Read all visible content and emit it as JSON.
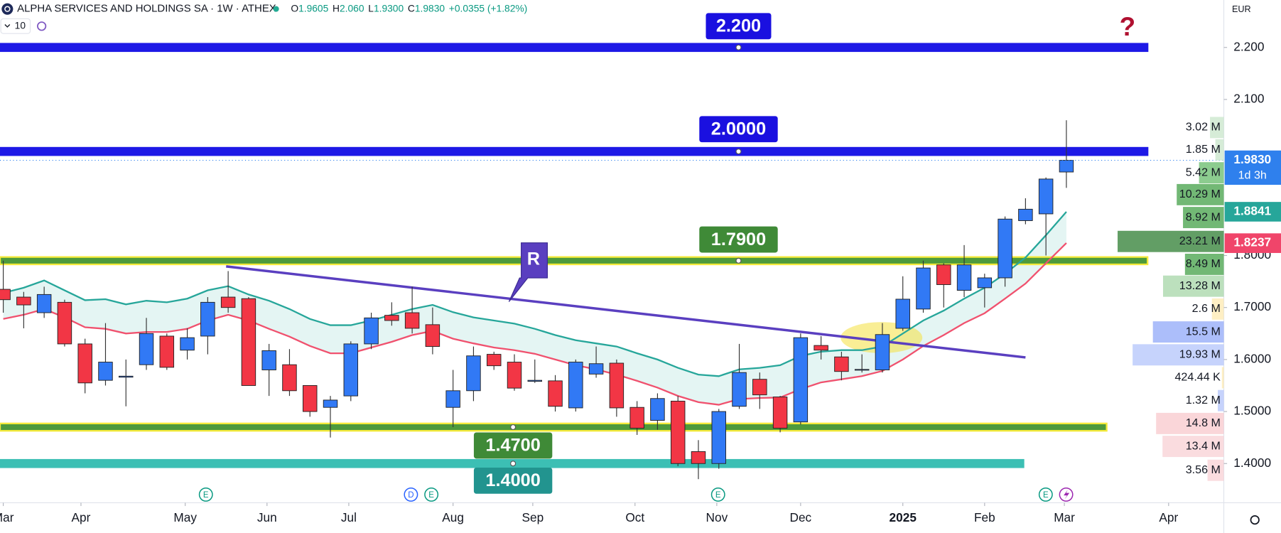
{
  "chart_data": {
    "type": "candlestick",
    "title": "ALPHA SERVICES AND HOLDINGS SA · 1W · ATHEX",
    "ohlc": [
      {
        "key": "O",
        "text": "1.9605"
      },
      {
        "key": "H",
        "text": "2.060"
      },
      {
        "key": "L",
        "text": "1.9300"
      },
      {
        "key": "C",
        "text": "1.9830"
      }
    ],
    "change": "+0.0355 (+1.82%)",
    "indicators": "10",
    "currency": "EUR",
    "up_color": "#3179f5",
    "down_color": "#f23645",
    "open": [
      1.735,
      1.72,
      1.69,
      1.71,
      1.63,
      1.56,
      1.566,
      1.59,
      1.645,
      1.618,
      1.645,
      1.72,
      1.717,
      1.58,
      1.59,
      1.55,
      1.508,
      1.53,
      1.63,
      1.685,
      1.69,
      1.667,
      1.508,
      1.54,
      1.61,
      1.595,
      1.558,
      1.559,
      1.507,
      1.572,
      1.593,
      1.508,
      1.483,
      1.52,
      1.423,
      1.4,
      1.51,
      1.562,
      1.528,
      1.48,
      1.627,
      1.605,
      1.58,
      1.58,
      1.66,
      1.697,
      1.782,
      1.733,
      1.738,
      1.757,
      1.867,
      1.88,
      1.9605
    ],
    "high": [
      1.79,
      1.73,
      1.74,
      1.715,
      1.64,
      1.67,
      1.6,
      1.68,
      1.65,
      1.66,
      1.72,
      1.77,
      1.72,
      1.63,
      1.62,
      1.55,
      1.53,
      1.635,
      1.69,
      1.71,
      1.74,
      1.7,
      1.58,
      1.625,
      1.615,
      1.61,
      1.6,
      1.57,
      1.6,
      1.625,
      1.6,
      1.52,
      1.535,
      1.53,
      1.445,
      1.505,
      1.63,
      1.575,
      1.53,
      1.65,
      1.645,
      1.615,
      1.61,
      1.67,
      1.76,
      1.79,
      1.785,
      1.82,
      1.765,
      1.875,
      1.91,
      1.95,
      2.06
    ],
    "low": [
      1.69,
      1.66,
      1.68,
      1.625,
      1.535,
      1.55,
      1.51,
      1.58,
      1.58,
      1.6,
      1.61,
      1.69,
      1.55,
      1.53,
      1.53,
      1.49,
      1.45,
      1.52,
      1.62,
      1.665,
      1.65,
      1.61,
      1.47,
      1.52,
      1.58,
      1.54,
      1.555,
      1.5,
      1.5,
      1.565,
      1.49,
      1.455,
      1.465,
      1.395,
      1.37,
      1.39,
      1.505,
      1.505,
      1.46,
      1.475,
      1.6,
      1.56,
      1.575,
      1.575,
      1.655,
      1.69,
      1.7,
      1.72,
      1.7,
      1.74,
      1.86,
      1.8,
      1.93
    ],
    "close": [
      1.715,
      1.705,
      1.725,
      1.63,
      1.555,
      1.595,
      1.568,
      1.65,
      1.585,
      1.642,
      1.71,
      1.7,
      1.55,
      1.617,
      1.54,
      1.5,
      1.522,
      1.63,
      1.68,
      1.675,
      1.66,
      1.625,
      1.54,
      1.607,
      1.588,
      1.545,
      1.56,
      1.51,
      1.595,
      1.592,
      1.507,
      1.468,
      1.525,
      1.4,
      1.4,
      1.5,
      1.575,
      1.532,
      1.468,
      1.642,
      1.618,
      1.577,
      1.581,
      1.648,
      1.716,
      1.776,
      1.744,
      1.782,
      1.757,
      1.87,
      1.889,
      1.947,
      1.983
    ],
    "series": [
      {
        "color": "#26a69a",
        "values": [
          1.728,
          1.738,
          1.752,
          1.733,
          1.714,
          1.716,
          1.706,
          1.713,
          1.71,
          1.717,
          1.733,
          1.741,
          1.725,
          1.713,
          1.697,
          1.678,
          1.666,
          1.666,
          1.675,
          1.686,
          1.697,
          1.705,
          1.691,
          1.681,
          1.675,
          1.669,
          1.659,
          1.647,
          1.637,
          1.631,
          1.625,
          1.612,
          1.6,
          1.584,
          1.571,
          1.568,
          1.581,
          1.584,
          1.589,
          1.607,
          1.615,
          1.618,
          1.618,
          1.625,
          1.65,
          1.675,
          1.694,
          1.717,
          1.738,
          1.765,
          1.796,
          1.839,
          1.884
        ]
      },
      {
        "color": "#f0516e",
        "values": [
          1.678,
          1.686,
          1.697,
          1.681,
          1.662,
          1.659,
          1.65,
          1.653,
          1.653,
          1.659,
          1.675,
          1.686,
          1.675,
          1.659,
          1.644,
          1.626,
          1.612,
          1.612,
          1.623,
          1.634,
          1.647,
          1.655,
          1.64,
          1.631,
          1.623,
          1.618,
          1.611,
          1.6,
          1.589,
          1.581,
          1.571,
          1.559,
          1.546,
          1.53,
          1.518,
          1.513,
          1.524,
          1.526,
          1.527,
          1.543,
          1.556,
          1.562,
          1.568,
          1.578,
          1.6,
          1.626,
          1.647,
          1.67,
          1.689,
          1.717,
          1.746,
          1.785,
          1.824
        ]
      }
    ],
    "channel_color": "#d9f1ee",
    "xlim": [
      -0.16,
      59.7
    ],
    "xticks": [
      {
        "value": 0,
        "label": "Mar"
      },
      {
        "value": 3.8,
        "label": "Apr"
      },
      {
        "value": 8.9,
        "label": "May"
      },
      {
        "value": 12.9,
        "label": "Jun"
      },
      {
        "value": 16.9,
        "label": "Jul"
      },
      {
        "value": 22,
        "label": "Aug"
      },
      {
        "value": 25.9,
        "label": "Sep"
      },
      {
        "value": 30.9,
        "label": "Oct"
      },
      {
        "value": 34.9,
        "label": "Nov"
      },
      {
        "value": 39,
        "label": "Dec"
      },
      {
        "value": 44,
        "label": "2025",
        "bold": true
      },
      {
        "value": 48,
        "label": "Feb"
      },
      {
        "value": 51.9,
        "label": "Mar"
      },
      {
        "value": 57,
        "label": "Apr"
      }
    ],
    "ylim": [
      1.3246,
      2.2912
    ],
    "yticks": [
      {
        "value": 2.2,
        "label": "2.200"
      },
      {
        "value": 2.1,
        "label": "2.100"
      },
      {
        "value": 1.8,
        "label": "1.8000"
      },
      {
        "value": 1.7,
        "label": "1.7000"
      },
      {
        "value": 1.6,
        "label": "1.6000"
      },
      {
        "value": 1.5,
        "label": "1.5000"
      },
      {
        "value": 1.4,
        "label": "1.4000"
      }
    ],
    "grid": false,
    "levels": [
      {
        "value": 2.2,
        "label": "2.200",
        "color": "#1e19e6",
        "end": 55.97
      },
      {
        "value": 2.0,
        "label": "2.0000",
        "color": "#1e19e6",
        "end": 55.97
      },
      {
        "value": 1.79,
        "label": "1.7900",
        "color": "#4d9a3c",
        "border": "#f4ea3a",
        "end": 55.97
      },
      {
        "value": 1.47,
        "label": "1.4700",
        "color": "#4d9a3c",
        "border": "#f4ea3a",
        "end": 53.97
      },
      {
        "value": 1.4,
        "label": "1.4000",
        "color": "#3cbfb4",
        "end": 49.9
      }
    ],
    "trendline": {
      "label": "R",
      "x": [
        10.9,
        50
      ],
      "y": [
        1.779,
        1.604
      ],
      "color": "#5a3fc0"
    },
    "annotation": "?",
    "volume_profile": {
      "prices": [
        2.046,
        2.003,
        1.959,
        1.917,
        1.873,
        1.827,
        1.783,
        1.741,
        1.697,
        1.653,
        1.609,
        1.565,
        1.521,
        1.477,
        1.433,
        1.387
      ],
      "values": [
        3.02,
        1.85,
        5.42,
        10.29,
        8.92,
        23.21,
        8.49,
        13.28,
        2.6,
        15.5,
        19.93,
        0.42444,
        1.32,
        14.8,
        13.4,
        3.56
      ],
      "value_labels": [
        "3.02 M",
        "1.85 M",
        "5.42 M",
        "10.29 M",
        "8.92 M",
        "23.21 M",
        "8.49 M",
        "13.28 M",
        "2.6 M",
        "15.5 M",
        "19.93 M",
        "424.44 K",
        "1.32 M",
        "14.8 M",
        "13.4 M",
        "3.56 M"
      ],
      "colors": [
        "#c8e6c9",
        "#c8e6c9",
        "#66bb6a",
        "#43a047",
        "#43a047",
        "#2e7d32",
        "#43a047",
        "#a5d6a7",
        "#fde9b0",
        "#90a8f8",
        "#b3c4fb",
        "#fde9b0",
        "#b3c4fb",
        "#f8c8cc",
        "#f8d0d4",
        "#f8d0d4"
      ]
    },
    "price_labels": [
      {
        "value": 1.983,
        "label": "1.9830",
        "sub": "1d 3h",
        "color": "#2f80ed"
      },
      {
        "value": 1.8841,
        "label": "1.8841",
        "color": "#26a69a"
      },
      {
        "value": 1.8237,
        "label": "1.8237",
        "color": "#f0456a"
      }
    ],
    "events": [
      "E",
      "D",
      "E",
      "E",
      "E"
    ]
  }
}
